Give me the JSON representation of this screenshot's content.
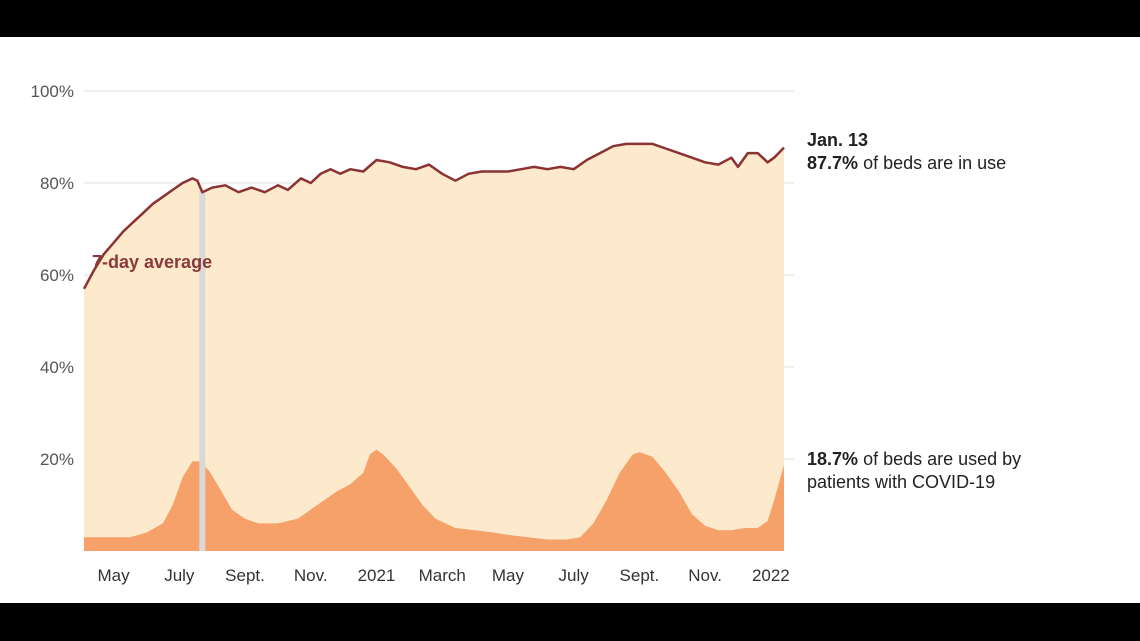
{
  "chart_data": {
    "type": "area",
    "y_ticks": [
      "100%",
      "80%",
      "60%",
      "40%",
      "20%"
    ],
    "ylim": [
      0,
      100
    ],
    "x_tick_labels": [
      "May",
      "July",
      "Sept.",
      "Nov.",
      "2021",
      "March",
      "May",
      "July",
      "Sept.",
      "Nov.",
      "2022"
    ],
    "x_tick_months": [
      0,
      2,
      4,
      6,
      8,
      10,
      12,
      14,
      16,
      18,
      20
    ],
    "x_range_months": [
      -0.9,
      20.4
    ],
    "series": [
      {
        "name": "of beds are in use",
        "style": "line",
        "color": "#8b3232",
        "fill": "#fde9cc",
        "points": [
          [
            -0.9,
            57
          ],
          [
            -0.6,
            61
          ],
          [
            -0.3,
            64.5
          ],
          [
            0.0,
            67
          ],
          [
            0.3,
            69.5
          ],
          [
            0.6,
            71.5
          ],
          [
            0.9,
            73.5
          ],
          [
            1.2,
            75.5
          ],
          [
            1.5,
            77
          ],
          [
            1.8,
            78.5
          ],
          [
            2.1,
            80
          ],
          [
            2.4,
            81
          ],
          [
            2.55,
            80.5
          ],
          [
            2.7,
            78
          ],
          [
            3.0,
            79
          ],
          [
            3.4,
            79.5
          ],
          [
            3.8,
            78
          ],
          [
            4.2,
            79
          ],
          [
            4.6,
            78
          ],
          [
            5.0,
            79.5
          ],
          [
            5.3,
            78.5
          ],
          [
            5.7,
            81
          ],
          [
            6.0,
            80
          ],
          [
            6.3,
            82
          ],
          [
            6.6,
            83
          ],
          [
            6.9,
            82
          ],
          [
            7.2,
            83
          ],
          [
            7.6,
            82.5
          ],
          [
            8.0,
            85
          ],
          [
            8.4,
            84.5
          ],
          [
            8.8,
            83.5
          ],
          [
            9.2,
            83
          ],
          [
            9.6,
            84
          ],
          [
            10.0,
            82
          ],
          [
            10.4,
            80.5
          ],
          [
            10.8,
            82
          ],
          [
            11.2,
            82.5
          ],
          [
            11.6,
            82.5
          ],
          [
            12.0,
            82.5
          ],
          [
            12.4,
            83
          ],
          [
            12.8,
            83.5
          ],
          [
            13.2,
            83
          ],
          [
            13.6,
            83.5
          ],
          [
            14.0,
            83
          ],
          [
            14.4,
            85
          ],
          [
            14.8,
            86.5
          ],
          [
            15.2,
            88
          ],
          [
            15.6,
            88.5
          ],
          [
            16.0,
            88.5
          ],
          [
            16.4,
            88.5
          ],
          [
            16.8,
            87.5
          ],
          [
            17.2,
            86.5
          ],
          [
            17.6,
            85.5
          ],
          [
            18.0,
            84.5
          ],
          [
            18.4,
            84
          ],
          [
            18.8,
            85.5
          ],
          [
            19.0,
            83.5
          ],
          [
            19.3,
            86.5
          ],
          [
            19.6,
            86.5
          ],
          [
            19.9,
            84.5
          ],
          [
            20.1,
            85.5
          ],
          [
            20.4,
            87.7
          ]
        ]
      },
      {
        "name": "of beds are used by patients with COVID-19",
        "style": "area",
        "color": "#f6a16a",
        "points": [
          [
            -0.9,
            3
          ],
          [
            0.0,
            3
          ],
          [
            0.5,
            3
          ],
          [
            1.0,
            4
          ],
          [
            1.5,
            6
          ],
          [
            1.8,
            10
          ],
          [
            2.1,
            16
          ],
          [
            2.4,
            19.5
          ],
          [
            2.6,
            19.5
          ],
          [
            2.9,
            17.5
          ],
          [
            3.2,
            14
          ],
          [
            3.6,
            9
          ],
          [
            4.0,
            7
          ],
          [
            4.4,
            6
          ],
          [
            5.0,
            6
          ],
          [
            5.6,
            7
          ],
          [
            6.0,
            9
          ],
          [
            6.4,
            11
          ],
          [
            6.8,
            13
          ],
          [
            7.2,
            14.5
          ],
          [
            7.6,
            17
          ],
          [
            7.8,
            21
          ],
          [
            8.0,
            22
          ],
          [
            8.2,
            21
          ],
          [
            8.6,
            18
          ],
          [
            9.0,
            14
          ],
          [
            9.4,
            10
          ],
          [
            9.8,
            7
          ],
          [
            10.4,
            5
          ],
          [
            11.0,
            4.5
          ],
          [
            11.6,
            4
          ],
          [
            12.0,
            3.5
          ],
          [
            12.6,
            3
          ],
          [
            13.2,
            2.5
          ],
          [
            13.8,
            2.5
          ],
          [
            14.2,
            3
          ],
          [
            14.6,
            6
          ],
          [
            15.0,
            11
          ],
          [
            15.4,
            17
          ],
          [
            15.8,
            21
          ],
          [
            16.0,
            21.5
          ],
          [
            16.4,
            20.5
          ],
          [
            16.8,
            17
          ],
          [
            17.2,
            13
          ],
          [
            17.6,
            8
          ],
          [
            18.0,
            5.5
          ],
          [
            18.4,
            4.5
          ],
          [
            18.8,
            4.5
          ],
          [
            19.2,
            5
          ],
          [
            19.6,
            5
          ],
          [
            19.9,
            6.5
          ],
          [
            20.1,
            11
          ],
          [
            20.4,
            18.7
          ]
        ]
      }
    ],
    "highlight_month": 2.7,
    "series_label": "7-day average"
  },
  "annotations": {
    "date": "Jan. 13",
    "beds_value": "87.7%",
    "beds_text": "of beds are in use",
    "covid_value": "18.7%",
    "covid_text_1": "of beds are used by",
    "covid_text_2": "patients with COVID-19"
  },
  "colors": {
    "line": "#8b3232",
    "background_fill": "#fde9cc",
    "covid_fill": "#f6a16a",
    "gridline": "#dddddd",
    "highlight_bar": "#d9d9d9"
  }
}
